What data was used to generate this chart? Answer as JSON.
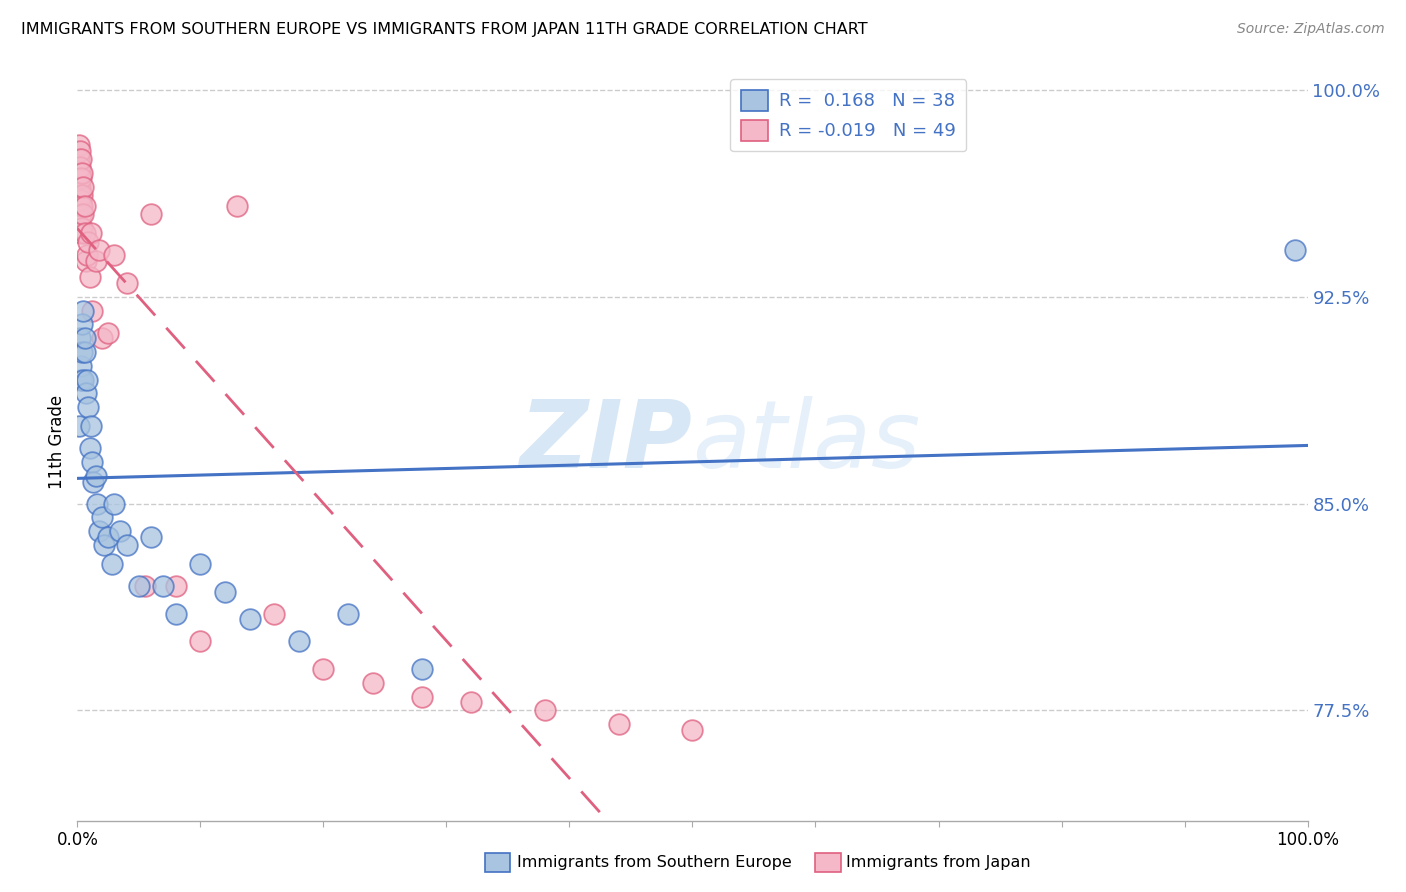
{
  "title": "IMMIGRANTS FROM SOUTHERN EUROPE VS IMMIGRANTS FROM JAPAN 11TH GRADE CORRELATION CHART",
  "source": "Source: ZipAtlas.com",
  "ylabel": "11th Grade",
  "y_ticks": [
    0.775,
    0.85,
    0.925,
    1.0
  ],
  "y_tick_labels": [
    "77.5%",
    "85.0%",
    "92.5%",
    "100.0%"
  ],
  "legend_r_blue": "0.168",
  "legend_n_blue": "38",
  "legend_r_pink": "-0.019",
  "legend_n_pink": "49",
  "blue_fill": "#a8c4e0",
  "blue_edge": "#4472c4",
  "pink_fill": "#f4b8c8",
  "pink_edge": "#e06080",
  "blue_line_color": "#4472c4",
  "pink_line_color": "#e06080",
  "watermark_color": "#d0e8f8",
  "blue_scatter_x": [
    0.001,
    0.002,
    0.003,
    0.003,
    0.004,
    0.004,
    0.005,
    0.005,
    0.006,
    0.006,
    0.007,
    0.008,
    0.009,
    0.01,
    0.011,
    0.012,
    0.013,
    0.015,
    0.016,
    0.018,
    0.02,
    0.022,
    0.025,
    0.028,
    0.03,
    0.035,
    0.04,
    0.05,
    0.06,
    0.07,
    0.08,
    0.1,
    0.12,
    0.14,
    0.18,
    0.22,
    0.28,
    0.99
  ],
  "blue_scatter_y": [
    0.878,
    0.91,
    0.895,
    0.9,
    0.905,
    0.915,
    0.895,
    0.92,
    0.905,
    0.91,
    0.89,
    0.895,
    0.885,
    0.87,
    0.878,
    0.865,
    0.858,
    0.86,
    0.85,
    0.84,
    0.845,
    0.835,
    0.838,
    0.828,
    0.85,
    0.84,
    0.835,
    0.82,
    0.838,
    0.82,
    0.81,
    0.828,
    0.818,
    0.808,
    0.8,
    0.81,
    0.79,
    0.942
  ],
  "pink_scatter_x": [
    0.001,
    0.001,
    0.001,
    0.001,
    0.001,
    0.002,
    0.002,
    0.002,
    0.002,
    0.002,
    0.002,
    0.003,
    0.003,
    0.003,
    0.003,
    0.003,
    0.004,
    0.004,
    0.004,
    0.004,
    0.005,
    0.005,
    0.006,
    0.006,
    0.007,
    0.008,
    0.009,
    0.01,
    0.011,
    0.012,
    0.015,
    0.018,
    0.02,
    0.025,
    0.03,
    0.04,
    0.055,
    0.06,
    0.08,
    0.1,
    0.13,
    0.16,
    0.2,
    0.24,
    0.28,
    0.32,
    0.38,
    0.44,
    0.5
  ],
  "pink_scatter_y": [
    0.98,
    0.97,
    0.968,
    0.96,
    0.975,
    0.978,
    0.97,
    0.965,
    0.958,
    0.972,
    0.962,
    0.975,
    0.968,
    0.96,
    0.955,
    0.948,
    0.97,
    0.962,
    0.958,
    0.95,
    0.965,
    0.955,
    0.958,
    0.948,
    0.938,
    0.94,
    0.945,
    0.932,
    0.948,
    0.92,
    0.938,
    0.942,
    0.91,
    0.912,
    0.94,
    0.93,
    0.82,
    0.955,
    0.82,
    0.8,
    0.958,
    0.81,
    0.79,
    0.785,
    0.78,
    0.778,
    0.775,
    0.77,
    0.768
  ],
  "xlim": [
    0.0,
    1.0
  ],
  "ylim": [
    0.735,
    1.01
  ]
}
